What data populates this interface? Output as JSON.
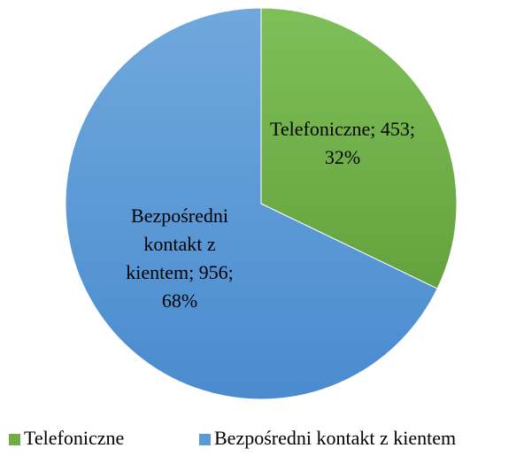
{
  "chart_data": {
    "type": "pie",
    "categories": [
      "Telefoniczne",
      "Bezpośredni kontakt z kientem"
    ],
    "values": [
      453,
      956
    ],
    "data_labels": [
      "Telefoniczne; 453; 32%",
      "Bezpośredni kontakt z kientem; 956; 68%"
    ],
    "colors": [
      "#70ad47",
      "#5b9bd5"
    ],
    "legend": "bottom"
  }
}
